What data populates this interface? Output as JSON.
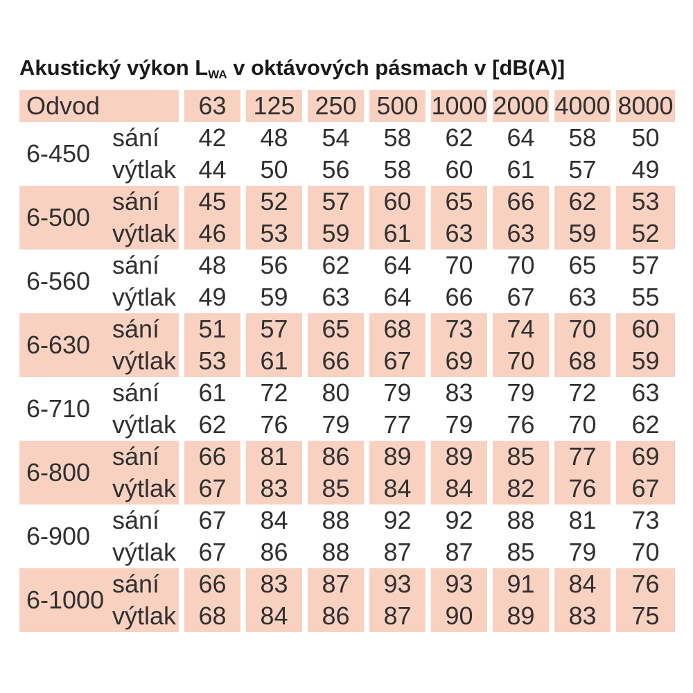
{
  "title": {
    "prefix": "Akustický výkon L",
    "subscript": "WA",
    "suffix": " v oktávových pásmach v [dB(A)]"
  },
  "table": {
    "corner_header": "Odvod",
    "frequency_headers": [
      "63",
      "125",
      "250",
      "500",
      "1000",
      "2000",
      "4000",
      "8000"
    ],
    "row_labels": {
      "intake": "sání",
      "discharge": "výtlak"
    },
    "groups": [
      {
        "size": "6-450",
        "shaded": false,
        "sani": [
          42,
          48,
          54,
          58,
          62,
          64,
          58,
          50
        ],
        "vytlak": [
          44,
          50,
          56,
          58,
          60,
          61,
          57,
          49
        ]
      },
      {
        "size": "6-500",
        "shaded": true,
        "sani": [
          45,
          52,
          57,
          60,
          65,
          66,
          62,
          53
        ],
        "vytlak": [
          46,
          53,
          59,
          61,
          63,
          63,
          59,
          52
        ]
      },
      {
        "size": "6-560",
        "shaded": false,
        "sani": [
          48,
          56,
          62,
          64,
          70,
          70,
          65,
          57
        ],
        "vytlak": [
          49,
          59,
          63,
          64,
          66,
          67,
          63,
          55
        ]
      },
      {
        "size": "6-630",
        "shaded": true,
        "sani": [
          51,
          57,
          65,
          68,
          73,
          74,
          70,
          60
        ],
        "vytlak": [
          53,
          61,
          66,
          67,
          69,
          70,
          68,
          59
        ]
      },
      {
        "size": "6-710",
        "shaded": false,
        "sani": [
          61,
          72,
          80,
          79,
          83,
          79,
          72,
          63
        ],
        "vytlak": [
          62,
          76,
          79,
          77,
          79,
          76,
          70,
          62
        ]
      },
      {
        "size": "6-800",
        "shaded": true,
        "sani": [
          66,
          81,
          86,
          89,
          89,
          85,
          77,
          69
        ],
        "vytlak": [
          67,
          83,
          85,
          84,
          84,
          82,
          76,
          67
        ]
      },
      {
        "size": "6-900",
        "shaded": false,
        "sani": [
          67,
          84,
          88,
          92,
          92,
          88,
          81,
          73
        ],
        "vytlak": [
          67,
          86,
          88,
          87,
          87,
          85,
          79,
          70
        ]
      },
      {
        "size": "6-1000",
        "shaded": true,
        "sani": [
          66,
          83,
          87,
          93,
          93,
          91,
          84,
          76
        ],
        "vytlak": [
          68,
          84,
          86,
          87,
          90,
          89,
          83,
          75
        ]
      }
    ]
  },
  "colors": {
    "shade": "#F9D1C1",
    "text": "#303030",
    "title_text": "#1A1A1A",
    "background": "#FFFFFF"
  }
}
